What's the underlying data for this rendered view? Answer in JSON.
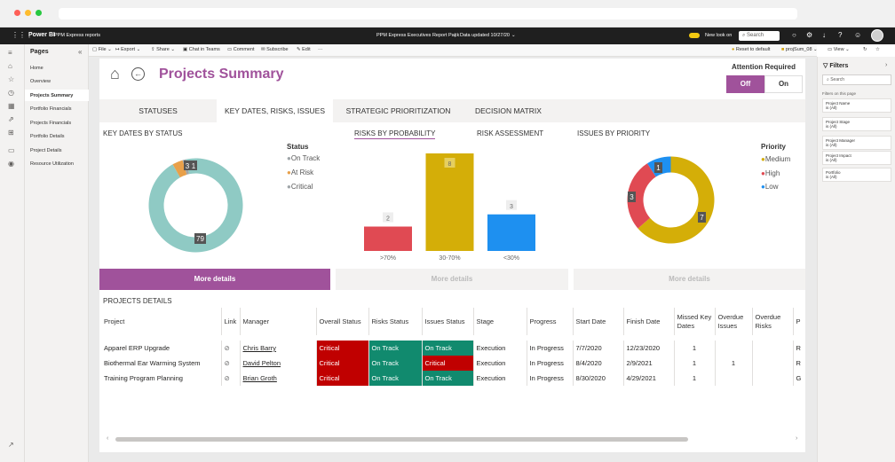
{
  "topbar": {
    "app_name": "Power BI",
    "workspace": "PPM Express reports",
    "report_title": "PPM Express Executives Report Pack",
    "data_updated": "Data updated 10/27/20",
    "new_look": "New look on",
    "search_placeholder": "Search"
  },
  "pages_pane": {
    "title": "Pages",
    "items": [
      "Home",
      "Overview",
      "Projects Summary",
      "Portfolio Financials",
      "Projects Financials",
      "Portfolio Details",
      "Project Details",
      "Resource Utilization"
    ]
  },
  "toolbar": {
    "file": "File",
    "export": "Export",
    "share": "Share",
    "chat": "Chat in Teams",
    "comment": "Comment",
    "subscribe": "Subscribe",
    "edit": "Edit",
    "more": "···",
    "reset": "Reset to default",
    "bookmark": "projSum_08",
    "view": "View"
  },
  "report": {
    "title": "Projects Summary",
    "attention_required": "Attention Required",
    "toggle_off": "Off",
    "toggle_on": "On",
    "tabs": [
      "STATUSES",
      "KEY DATES, RISKS, ISSUES",
      "STRATEGIC PRIORITIZATION",
      "DECISION MATRIX"
    ],
    "more_details": "More details",
    "projects_details_title": "PROJECTS DETAILS"
  },
  "charts": {
    "key_dates": {
      "title": "KEY DATES BY STATUS",
      "legend_title": "Status",
      "labels": [
        "3",
        "1",
        "79"
      ]
    },
    "risks": {
      "title": "RISKS BY PROBABILITY",
      "subtab": "RISK ASSESSMENT"
    },
    "issues": {
      "title": "ISSUES BY PRIORITY",
      "legend_title": "Priority",
      "labels": [
        "1",
        "3",
        "7"
      ]
    }
  },
  "chart_data": [
    {
      "type": "pie",
      "title": "KEY DATES BY STATUS",
      "legend_title": "Status",
      "categories": [
        "On Track",
        "At Risk",
        "Critical"
      ],
      "values": [
        79,
        3,
        1
      ],
      "colors": [
        "#8fcac4",
        "#e8a04a",
        "#9fa5a8"
      ]
    },
    {
      "type": "bar",
      "title": "RISKS BY PROBABILITY",
      "categories": [
        ">70%",
        "30-70%",
        "<30%"
      ],
      "values": [
        2,
        8,
        3
      ],
      "colors": [
        "#e04a53",
        "#d4ae08",
        "#1e90f0"
      ]
    },
    {
      "type": "pie",
      "title": "ISSUES BY PRIORITY",
      "legend_title": "Priority",
      "categories": [
        "Medium",
        "High",
        "Low"
      ],
      "values": [
        7,
        3,
        1
      ],
      "colors": [
        "#d4ae08",
        "#e04a53",
        "#1e90f0"
      ]
    }
  ],
  "projects_table": {
    "columns": [
      "Project",
      "Link",
      "Manager",
      "Overall Status",
      "Risks Status",
      "Issues Status",
      "Stage",
      "Progress",
      "Start Date",
      "Finish Date",
      "Missed Key Dates",
      "Overdue Issues",
      "Overdue Risks",
      "P"
    ],
    "rows": [
      [
        "Apparel ERP Upgrade",
        "",
        "Chris Barry",
        "Critical",
        "On Track",
        "On Track",
        "Execution",
        "In Progress",
        "7/7/2020",
        "12/23/2020",
        "1",
        "",
        "",
        "R"
      ],
      [
        "Biothermal Ear Warming System",
        "",
        "David Pelton",
        "Critical",
        "On Track",
        "Critical",
        "Execution",
        "In Progress",
        "8/4/2020",
        "2/9/2021",
        "1",
        "1",
        "",
        "R"
      ],
      [
        "Training Program Planning",
        "",
        "Brian Groth",
        "Critical",
        "On Track",
        "On Track",
        "Execution",
        "In Progress",
        "8/30/2020",
        "4/29/2021",
        "1",
        "",
        "",
        "G"
      ]
    ]
  },
  "filters": {
    "title": "Filters",
    "search_placeholder": "Search",
    "section": "Filters on this page",
    "cards": [
      {
        "name": "Project Name",
        "value": "is (All)"
      },
      {
        "name": "Project Stage",
        "value": "is (All)"
      },
      {
        "name": "Project Manager",
        "value": "is (All)"
      },
      {
        "name": "Project Impact",
        "value": "is (All)"
      },
      {
        "name": "Portfolio",
        "value": "is (All)"
      }
    ]
  },
  "colors": {
    "accent": "#a0529b",
    "critical": "#c00000",
    "on_track": "#118a6e"
  }
}
